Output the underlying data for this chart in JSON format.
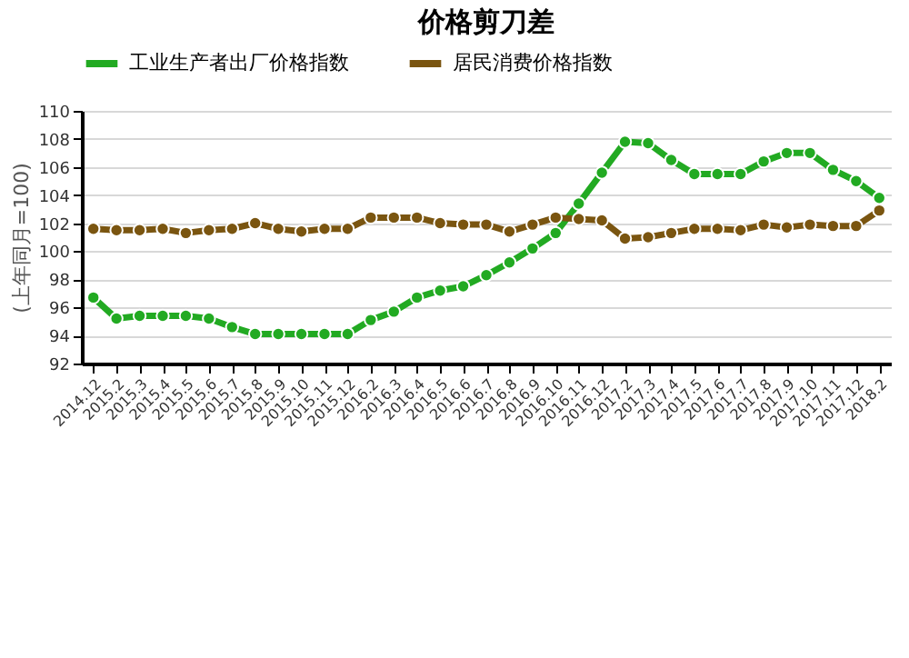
{
  "chart_data": {
    "type": "line",
    "title": "价格剪刀差",
    "ylabel": "(上年同月=100)",
    "categories": [
      "2014.12",
      "2015.2",
      "2015.3",
      "2015.4",
      "2015.5",
      "2015.6",
      "2015.7",
      "2015.8",
      "2015.9",
      "2015.10",
      "2015.11",
      "2015.12",
      "2016.2",
      "2016.3",
      "2016.4",
      "2016.5",
      "2016.6",
      "2016.7",
      "2016.8",
      "2016.9",
      "2016.10",
      "2016.11",
      "2016.12",
      "2017.2",
      "2017.3",
      "2017.4",
      "2017.5",
      "2017.6",
      "2017.7",
      "2017.8",
      "2017.9",
      "2017.10",
      "2017.11",
      "2017.12",
      "2018.2"
    ],
    "series": [
      {
        "name": "工业生产者出厂价格指数",
        "color": "#22aa22",
        "values": [
          96.7,
          95.2,
          95.4,
          95.4,
          95.4,
          95.2,
          94.6,
          94.1,
          94.1,
          94.1,
          94.1,
          94.1,
          95.1,
          95.7,
          96.7,
          97.2,
          97.5,
          98.3,
          99.2,
          100.2,
          101.3,
          103.4,
          105.6,
          107.8,
          107.7,
          106.5,
          105.5,
          105.5,
          105.5,
          106.4,
          107.0,
          107.0,
          105.8,
          105.0,
          103.8
        ]
      },
      {
        "name": "居民消费价格指数",
        "color": "#7a5510",
        "values": [
          101.6,
          101.5,
          101.5,
          101.6,
          101.3,
          101.5,
          101.6,
          102.0,
          101.6,
          101.4,
          101.6,
          101.6,
          102.4,
          102.4,
          102.4,
          102.0,
          101.9,
          101.9,
          101.4,
          101.9,
          102.4,
          102.3,
          102.2,
          100.9,
          101.0,
          101.3,
          101.6,
          101.6,
          101.5,
          101.9,
          101.7,
          101.9,
          101.8,
          101.8,
          102.9
        ]
      }
    ],
    "ylim": [
      92,
      110
    ],
    "yticks": [
      92,
      94,
      96,
      98,
      100,
      102,
      104,
      106,
      108,
      110
    ],
    "grid": "y",
    "legend": "top",
    "marker": "circle",
    "line_style": "solid"
  }
}
